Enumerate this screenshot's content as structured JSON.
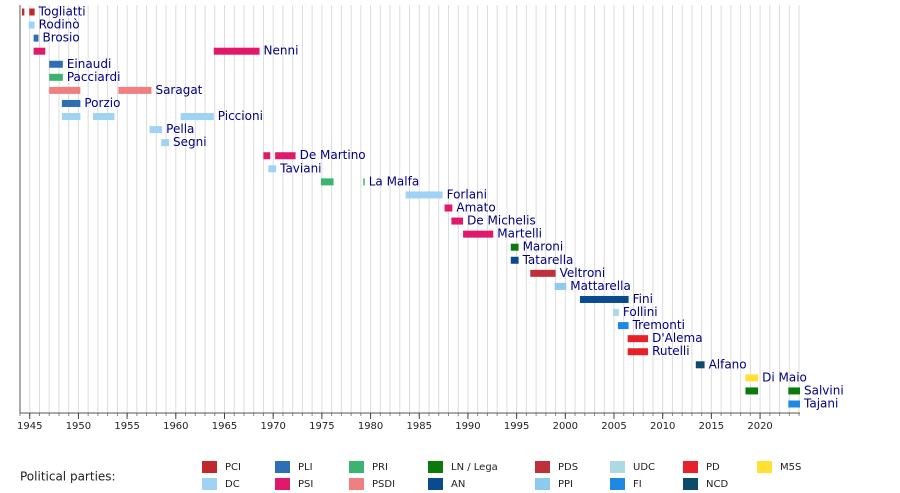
{
  "chart_data": {
    "type": "timeline",
    "xlim": [
      1944,
      2024.1
    ],
    "xticks": [
      1945,
      1950,
      1955,
      1960,
      1965,
      1970,
      1975,
      1980,
      1985,
      1990,
      1995,
      2000,
      2005,
      2010,
      2015,
      2020
    ],
    "xgrid_step": 1,
    "grid": true,
    "legend_title": "Political parties:",
    "parties": [
      {
        "name": "PCI",
        "color": "#c1272d"
      },
      {
        "name": "DC",
        "color": "#9fd3f5"
      },
      {
        "name": "PLI",
        "color": "#2e6eb5"
      },
      {
        "name": "PSI",
        "color": "#e0196b"
      },
      {
        "name": "PRI",
        "color": "#3cb371"
      },
      {
        "name": "PSDI",
        "color": "#f08080"
      },
      {
        "name": "LN / Lega",
        "color": "#0a7a0a"
      },
      {
        "name": "AN",
        "color": "#0a4a8f"
      },
      {
        "name": "PDS",
        "color": "#c0303a"
      },
      {
        "name": "PPI",
        "color": "#8ec9f0"
      },
      {
        "name": "UDC",
        "color": "#add8e6"
      },
      {
        "name": "FI",
        "color": "#1e88e5"
      },
      {
        "name": "PD",
        "color": "#e8202a"
      },
      {
        "name": "NCD",
        "color": "#0e4a6b"
      },
      {
        "name": "M5S",
        "color": "#ffe033"
      }
    ],
    "rows": [
      {
        "name": "Togliatti",
        "terms": [
          {
            "start": 1944.2,
            "end": 1944.45,
            "party": "PCI"
          },
          {
            "start": 1944.95,
            "end": 1945.5,
            "party": "PCI"
          }
        ]
      },
      {
        "name": "Rodinò",
        "terms": [
          {
            "start": 1944.9,
            "end": 1945.5,
            "party": "DC"
          }
        ]
      },
      {
        "name": "Brosio",
        "terms": [
          {
            "start": 1945.4,
            "end": 1945.9,
            "party": "PLI"
          }
        ]
      },
      {
        "name": "Nenni",
        "terms": [
          {
            "start": 1945.4,
            "end": 1946.6,
            "party": "PSI"
          },
          {
            "start": 1963.9,
            "end": 1968.6,
            "party": "PSI"
          }
        ]
      },
      {
        "name": "Einaudi",
        "terms": [
          {
            "start": 1947.0,
            "end": 1948.4,
            "party": "PLI"
          }
        ]
      },
      {
        "name": "Pacciardi",
        "terms": [
          {
            "start": 1947.0,
            "end": 1948.4,
            "party": "PRI"
          }
        ]
      },
      {
        "name": "Saragat",
        "terms": [
          {
            "start": 1947.0,
            "end": 1950.2,
            "party": "PSDI"
          },
          {
            "start": 1954.1,
            "end": 1957.5,
            "party": "PSDI"
          }
        ]
      },
      {
        "name": "Porzio",
        "terms": [
          {
            "start": 1948.3,
            "end": 1950.2,
            "party": "PLI"
          }
        ]
      },
      {
        "name": "Piccioni",
        "terms": [
          {
            "start": 1948.3,
            "end": 1950.2,
            "party": "DC"
          },
          {
            "start": 1951.5,
            "end": 1953.7,
            "party": "DC"
          },
          {
            "start": 1960.5,
            "end": 1963.9,
            "party": "DC"
          }
        ]
      },
      {
        "name": "Pella",
        "terms": [
          {
            "start": 1957.3,
            "end": 1958.6,
            "party": "DC"
          }
        ]
      },
      {
        "name": "Segni",
        "terms": [
          {
            "start": 1958.5,
            "end": 1959.3,
            "party": "DC"
          }
        ]
      },
      {
        "name": "De Martino",
        "terms": [
          {
            "start": 1969.0,
            "end": 1969.7,
            "party": "PSI"
          },
          {
            "start": 1970.2,
            "end": 1972.3,
            "party": "PSI"
          }
        ]
      },
      {
        "name": "Taviani",
        "terms": [
          {
            "start": 1969.5,
            "end": 1970.3,
            "party": "DC"
          }
        ]
      },
      {
        "name": "La Malfa",
        "terms": [
          {
            "start": 1974.9,
            "end": 1976.2,
            "party": "PRI"
          },
          {
            "start": 1979.25,
            "end": 1979.4,
            "party": "PRI"
          }
        ]
      },
      {
        "name": "Forlani",
        "terms": [
          {
            "start": 1983.6,
            "end": 1987.4,
            "party": "DC"
          }
        ]
      },
      {
        "name": "Amato",
        "terms": [
          {
            "start": 1987.6,
            "end": 1988.4,
            "party": "PSI"
          }
        ]
      },
      {
        "name": "De Michelis",
        "terms": [
          {
            "start": 1988.3,
            "end": 1989.5,
            "party": "PSI"
          }
        ]
      },
      {
        "name": "Martelli",
        "terms": [
          {
            "start": 1989.5,
            "end": 1992.6,
            "party": "PSI"
          }
        ]
      },
      {
        "name": "Maroni",
        "terms": [
          {
            "start": 1994.4,
            "end": 1995.2,
            "party": "LN / Lega"
          }
        ]
      },
      {
        "name": "Tatarella",
        "terms": [
          {
            "start": 1994.4,
            "end": 1995.2,
            "party": "AN"
          }
        ]
      },
      {
        "name": "Veltroni",
        "terms": [
          {
            "start": 1996.4,
            "end": 1999.0,
            "party": "PDS"
          }
        ]
      },
      {
        "name": "Mattarella",
        "terms": [
          {
            "start": 1998.9,
            "end": 2000.1,
            "party": "PPI"
          }
        ]
      },
      {
        "name": "Fini",
        "terms": [
          {
            "start": 2001.5,
            "end": 2006.5,
            "party": "AN"
          }
        ]
      },
      {
        "name": "Follini",
        "terms": [
          {
            "start": 2004.9,
            "end": 2005.5,
            "party": "UDC"
          }
        ]
      },
      {
        "name": "Tremonti",
        "terms": [
          {
            "start": 2005.4,
            "end": 2006.5,
            "party": "FI"
          }
        ]
      },
      {
        "name": "D'Alema",
        "terms": [
          {
            "start": 2006.4,
            "end": 2008.5,
            "party": "PD"
          }
        ]
      },
      {
        "name": "Rutelli",
        "terms": [
          {
            "start": 2006.4,
            "end": 2008.5,
            "party": "PD"
          }
        ]
      },
      {
        "name": "Alfano",
        "terms": [
          {
            "start": 2013.4,
            "end": 2014.3,
            "party": "NCD"
          }
        ]
      },
      {
        "name": "Di Maio",
        "terms": [
          {
            "start": 2018.5,
            "end": 2019.8,
            "party": "M5S"
          }
        ]
      },
      {
        "name": "Salvini",
        "terms": [
          {
            "start": 2018.5,
            "end": 2019.8,
            "party": "LN / Lega"
          },
          {
            "start": 2022.9,
            "end": 2024.1,
            "party": "LN / Lega"
          }
        ]
      },
      {
        "name": "Tajani",
        "terms": [
          {
            "start": 2022.9,
            "end": 2024.1,
            "party": "FI"
          }
        ]
      }
    ]
  }
}
